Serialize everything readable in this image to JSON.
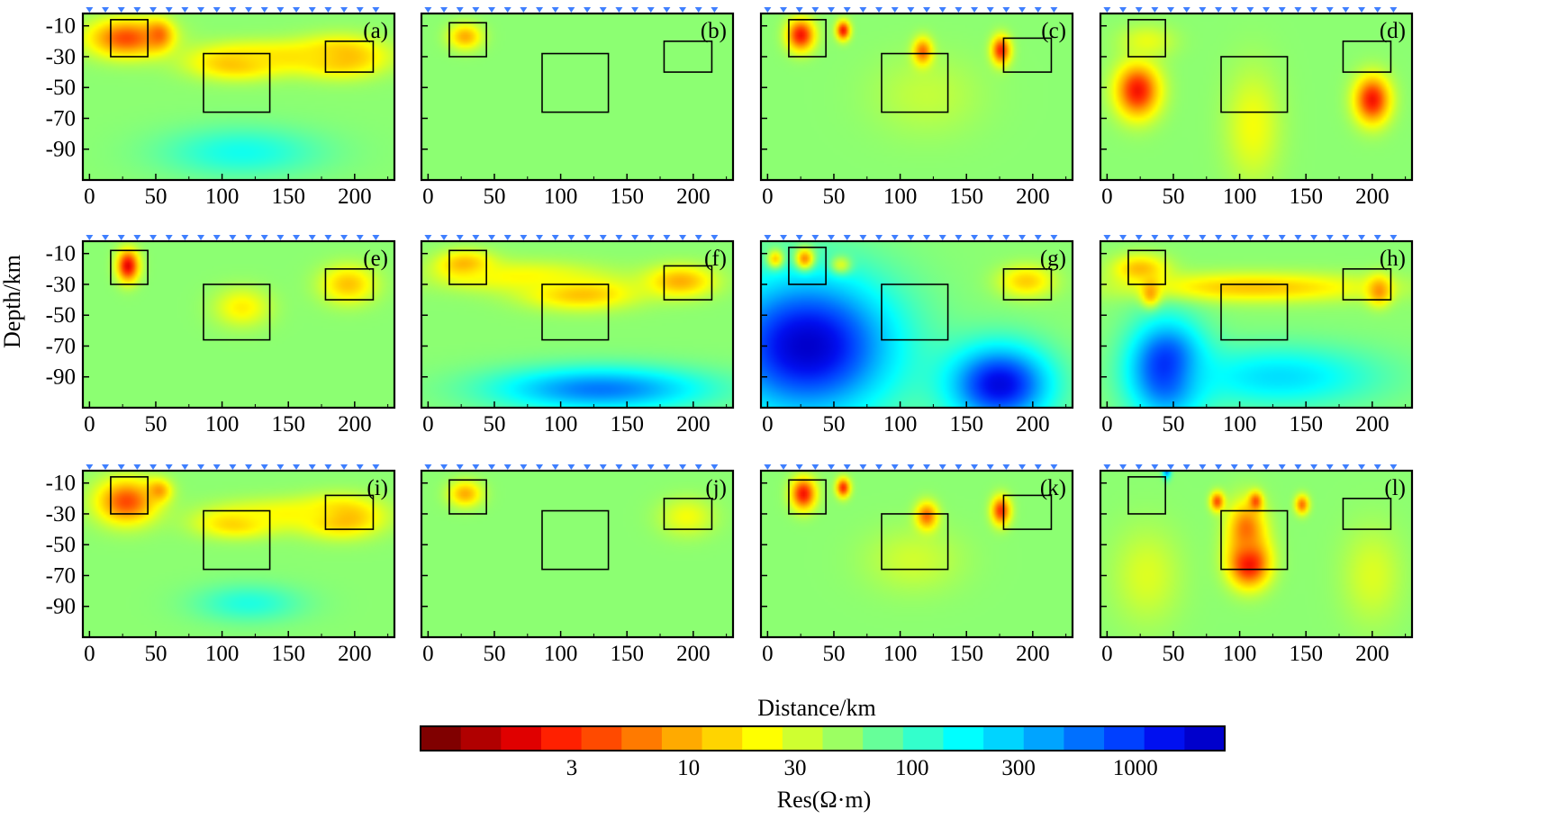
{
  "chart_data": {
    "type": "heatmap",
    "description_units": {
      "x": "km",
      "y": "km",
      "value": "ohm-m"
    },
    "xlabel": "Distance/km",
    "ylabel": "Depth/km",
    "xlim": [
      -5,
      230
    ],
    "ylim": [
      -110,
      -2
    ],
    "xticks": [
      0,
      50,
      100,
      150,
      200
    ],
    "xtick_labels": [
      "0",
      "50",
      "100",
      "150",
      "200"
    ],
    "yticks": [
      -10,
      -30,
      -50,
      -70,
      -90
    ],
    "ytick_labels": [
      "-10",
      "-30",
      "-50",
      "-70",
      "-90"
    ],
    "background_log_res": 1.75,
    "colorbar": {
      "label": "Res(Ω·m)",
      "log_min": -0.2,
      "log_max": 3.4,
      "ticks": [
        3,
        10,
        30,
        100,
        300,
        1000
      ],
      "tick_labels": [
        "3",
        "10",
        "30",
        "100",
        "300",
        "1000"
      ],
      "colors": [
        "#800000",
        "#b00000",
        "#e00000",
        "#ff2000",
        "#ff4a00",
        "#ff7a00",
        "#ffaa00",
        "#ffd400",
        "#ffff00",
        "#cfff30",
        "#9cff62",
        "#66ff99",
        "#33ffcc",
        "#00ffff",
        "#00d4ff",
        "#00a4ff",
        "#0070ff",
        "#0040ff",
        "#0010f0",
        "#0000cc"
      ]
    },
    "stations_km": [
      0,
      12,
      24,
      36,
      48,
      60,
      72,
      84,
      96,
      108,
      120,
      132,
      144,
      156,
      168,
      180,
      192,
      204,
      216
    ],
    "panels": [
      {
        "label": "(a)",
        "anomalies": [
          {
            "x": 28,
            "y": -18,
            "rx": 28,
            "ry": 12,
            "log_res": 0.55
          },
          {
            "x": 52,
            "y": -16,
            "rx": 10,
            "ry": 9,
            "log_res": 0.65
          },
          {
            "x": 110,
            "y": -34,
            "rx": 32,
            "ry": 10,
            "log_res": 0.95
          },
          {
            "x": 190,
            "y": -30,
            "rx": 30,
            "ry": 12,
            "log_res": 0.85
          },
          {
            "x": 150,
            "y": -30,
            "rx": 55,
            "ry": 10,
            "log_res": 1.2
          },
          {
            "x": 115,
            "y": -92,
            "rx": 60,
            "ry": 16,
            "log_res": 2.2
          }
        ],
        "rects": [
          [
            16,
            -6,
            44,
            -30
          ],
          [
            86,
            -28,
            136,
            -66
          ],
          [
            178,
            -20,
            214,
            -40
          ]
        ]
      },
      {
        "label": "(b)",
        "anomalies": [
          {
            "x": 28,
            "y": -17,
            "rx": 12,
            "ry": 8,
            "log_res": 0.95
          }
        ],
        "rects": [
          [
            16,
            -8,
            44,
            -30
          ],
          [
            86,
            -28,
            136,
            -66
          ],
          [
            178,
            -20,
            214,
            -40
          ]
        ]
      },
      {
        "label": "(c)",
        "anomalies": [
          {
            "x": 25,
            "y": -16,
            "rx": 10,
            "ry": 10,
            "log_res": 0.3
          },
          {
            "x": 57,
            "y": -13,
            "rx": 5,
            "ry": 6,
            "log_res": 0.3
          },
          {
            "x": 117,
            "y": -28,
            "rx": 7,
            "ry": 9,
            "log_res": 0.3
          },
          {
            "x": 176,
            "y": -26,
            "rx": 7,
            "ry": 9,
            "log_res": 0.35
          },
          {
            "x": 120,
            "y": -55,
            "rx": 40,
            "ry": 25,
            "log_res": 1.55
          }
        ],
        "rects": [
          [
            16,
            -6,
            44,
            -30
          ],
          [
            86,
            -28,
            136,
            -66
          ],
          [
            178,
            -18,
            214,
            -40
          ]
        ]
      },
      {
        "label": "(d)",
        "anomalies": [
          {
            "x": 23,
            "y": -52,
            "rx": 16,
            "ry": 17,
            "log_res": 0.3
          },
          {
            "x": 200,
            "y": -58,
            "rx": 13,
            "ry": 15,
            "log_res": 0.3
          },
          {
            "x": 110,
            "y": -75,
            "rx": 20,
            "ry": 35,
            "log_res": 1.35
          },
          {
            "x": 30,
            "y": -20,
            "rx": 20,
            "ry": 10,
            "log_res": 1.4
          }
        ],
        "rects": [
          [
            16,
            -6,
            44,
            -30
          ],
          [
            86,
            -30,
            136,
            -66
          ],
          [
            178,
            -20,
            214,
            -40
          ]
        ]
      },
      {
        "label": "(e)",
        "anomalies": [
          {
            "x": 29,
            "y": -18,
            "rx": 8,
            "ry": 10,
            "log_res": 0.2
          },
          {
            "x": 195,
            "y": -30,
            "rx": 20,
            "ry": 12,
            "log_res": 1.05
          },
          {
            "x": 115,
            "y": -45,
            "rx": 20,
            "ry": 12,
            "log_res": 1.25
          }
        ],
        "rects": [
          [
            16,
            -8,
            44,
            -30
          ],
          [
            86,
            -30,
            136,
            -66
          ],
          [
            178,
            -20,
            214,
            -40
          ]
        ]
      },
      {
        "label": "(f)",
        "anomalies": [
          {
            "x": 28,
            "y": -18,
            "rx": 20,
            "ry": 9,
            "log_res": 0.85
          },
          {
            "x": 115,
            "y": -36,
            "rx": 40,
            "ry": 10,
            "log_res": 1.0
          },
          {
            "x": 190,
            "y": -28,
            "rx": 25,
            "ry": 10,
            "log_res": 0.95
          },
          {
            "x": 70,
            "y": -25,
            "rx": 60,
            "ry": 10,
            "log_res": 1.3
          },
          {
            "x": 130,
            "y": -98,
            "rx": 80,
            "ry": 14,
            "log_res": 2.8
          }
        ],
        "rects": [
          [
            16,
            -8,
            44,
            -30
          ],
          [
            86,
            -30,
            136,
            -66
          ],
          [
            178,
            -18,
            214,
            -40
          ]
        ]
      },
      {
        "label": "(g)",
        "anomalies": [
          {
            "x": 28,
            "y": -14,
            "rx": 7,
            "ry": 7,
            "log_res": 0.15
          },
          {
            "x": 6,
            "y": -14,
            "rx": 6,
            "ry": 6,
            "log_res": 0.6
          },
          {
            "x": 55,
            "y": -18,
            "rx": 8,
            "ry": 6,
            "log_res": 0.9
          },
          {
            "x": 195,
            "y": -28,
            "rx": 20,
            "ry": 10,
            "log_res": 1.1
          },
          {
            "x": 30,
            "y": -70,
            "rx": 65,
            "ry": 45,
            "log_res": 3.4
          },
          {
            "x": 175,
            "y": -95,
            "rx": 38,
            "ry": 25,
            "log_res": 3.3
          }
        ],
        "rects": [
          [
            16,
            -6,
            44,
            -30
          ],
          [
            86,
            -30,
            136,
            -66
          ],
          [
            178,
            -20,
            214,
            -40
          ]
        ]
      },
      {
        "label": "(h)",
        "anomalies": [
          {
            "x": 33,
            "y": -35,
            "rx": 7,
            "ry": 9,
            "log_res": 0.55
          },
          {
            "x": 205,
            "y": -34,
            "rx": 9,
            "ry": 9,
            "log_res": 0.75
          },
          {
            "x": 110,
            "y": -32,
            "rx": 90,
            "ry": 9,
            "log_res": 1.05
          },
          {
            "x": 25,
            "y": -20,
            "rx": 20,
            "ry": 9,
            "log_res": 1.0
          },
          {
            "x": 45,
            "y": -85,
            "rx": 28,
            "ry": 30,
            "log_res": 3.3
          },
          {
            "x": 130,
            "y": -90,
            "rx": 75,
            "ry": 20,
            "log_res": 2.4
          }
        ],
        "rects": [
          [
            16,
            -8,
            44,
            -30
          ],
          [
            86,
            -30,
            136,
            -66
          ],
          [
            178,
            -20,
            214,
            -40
          ]
        ]
      },
      {
        "label": "(i)",
        "anomalies": [
          {
            "x": 28,
            "y": -22,
            "rx": 22,
            "ry": 14,
            "log_res": 0.55
          },
          {
            "x": 52,
            "y": -15,
            "rx": 9,
            "ry": 7,
            "log_res": 0.85
          },
          {
            "x": 110,
            "y": -36,
            "rx": 28,
            "ry": 9,
            "log_res": 1.05
          },
          {
            "x": 190,
            "y": -32,
            "rx": 28,
            "ry": 12,
            "log_res": 0.8
          },
          {
            "x": 150,
            "y": -30,
            "rx": 50,
            "ry": 10,
            "log_res": 1.3
          },
          {
            "x": 120,
            "y": -88,
            "rx": 40,
            "ry": 12,
            "log_res": 2.15
          }
        ],
        "rects": [
          [
            16,
            -6,
            44,
            -30
          ],
          [
            86,
            -28,
            136,
            -66
          ],
          [
            178,
            -18,
            214,
            -40
          ]
        ]
      },
      {
        "label": "(j)",
        "anomalies": [
          {
            "x": 28,
            "y": -17,
            "rx": 12,
            "ry": 8,
            "log_res": 0.95
          },
          {
            "x": 195,
            "y": -32,
            "rx": 20,
            "ry": 12,
            "log_res": 1.35
          }
        ],
        "rects": [
          [
            16,
            -8,
            44,
            -30
          ],
          [
            86,
            -28,
            136,
            -66
          ],
          [
            178,
            -20,
            214,
            -40
          ]
        ]
      },
      {
        "label": "(k)",
        "anomalies": [
          {
            "x": 27,
            "y": -17,
            "rx": 9,
            "ry": 10,
            "log_res": 0.3
          },
          {
            "x": 57,
            "y": -13,
            "rx": 5,
            "ry": 6,
            "log_res": 0.4
          },
          {
            "x": 120,
            "y": -32,
            "rx": 8,
            "ry": 9,
            "log_res": 0.55
          },
          {
            "x": 176,
            "y": -28,
            "rx": 7,
            "ry": 9,
            "log_res": 0.45
          },
          {
            "x": 110,
            "y": -60,
            "rx": 35,
            "ry": 20,
            "log_res": 1.5
          }
        ],
        "rects": [
          [
            16,
            -8,
            44,
            -30
          ],
          [
            86,
            -30,
            136,
            -66
          ],
          [
            178,
            -18,
            214,
            -40
          ]
        ]
      },
      {
        "label": "(l)",
        "anomalies": [
          {
            "x": 107,
            "y": -62,
            "rx": 15,
            "ry": 15,
            "log_res": 0.2
          },
          {
            "x": 105,
            "y": -40,
            "rx": 14,
            "ry": 18,
            "log_res": 0.7
          },
          {
            "x": 83,
            "y": -22,
            "rx": 5,
            "ry": 6,
            "log_res": 0.55
          },
          {
            "x": 112,
            "y": -22,
            "rx": 5,
            "ry": 6,
            "log_res": 0.55
          },
          {
            "x": 147,
            "y": -24,
            "rx": 5,
            "ry": 6,
            "log_res": 0.7
          },
          {
            "x": 45,
            "y": -2,
            "rx": 3,
            "ry": 5,
            "log_res": 2.8
          },
          {
            "x": 30,
            "y": -70,
            "rx": 25,
            "ry": 30,
            "log_res": 1.45
          },
          {
            "x": 200,
            "y": -70,
            "rx": 22,
            "ry": 30,
            "log_res": 1.45
          }
        ],
        "rects": [
          [
            16,
            -6,
            44,
            -30
          ],
          [
            86,
            -28,
            136,
            -66
          ],
          [
            178,
            -20,
            214,
            -40
          ]
        ]
      }
    ]
  }
}
